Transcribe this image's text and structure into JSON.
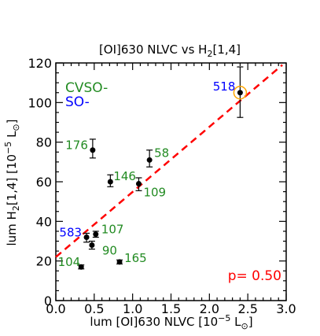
{
  "chart_data": {
    "type": "scatter",
    "title": "[OI]630 NLVC vs H₂[1,4]",
    "title_main": "[OI]630 NLVC vs H",
    "title_sub": "2",
    "title_tail": "[1,4]",
    "xlabel_main": "lum [OI]630 NLVC [10",
    "xlabel_sup": "−5",
    "xlabel_unit": " L",
    "xlabel_sub": "⊙",
    "xlabel_close": "]",
    "ylabel_main": "lum H",
    "ylabel_sub1": "2",
    "ylabel_mid": "[1,4] [10",
    "ylabel_sup": "−5",
    "ylabel_unit": " L",
    "ylabel_sub2": "⊙",
    "ylabel_close": "]",
    "xlim": [
      0.0,
      3.0
    ],
    "ylim": [
      0,
      120
    ],
    "xticks": [
      "0.0",
      "0.5",
      "1.0",
      "1.5",
      "2.0",
      "2.5",
      "3.0"
    ],
    "xtick_values": [
      0.0,
      0.5,
      1.0,
      1.5,
      2.0,
      2.5,
      3.0
    ],
    "yticks": [
      "0",
      "20",
      "40",
      "60",
      "80",
      "100",
      "120"
    ],
    "ytick_values": [
      0,
      20,
      40,
      60,
      80,
      100,
      120
    ],
    "legend": [
      {
        "label": "CVSO-",
        "color": "#228b22"
      },
      {
        "label": "SO-",
        "color": "#0000ff"
      }
    ],
    "points": [
      {
        "label": "518",
        "x": 2.4,
        "y": 105.0,
        "yerr_lo": 12.5,
        "yerr_hi": 13.0,
        "color": "#0000ff",
        "highlight": true
      },
      {
        "label": "176",
        "x": 0.48,
        "y": 76.0,
        "yerr_lo": 4.0,
        "yerr_hi": 5.5,
        "color": "#228b22"
      },
      {
        "label": "58",
        "x": 1.22,
        "y": 71.0,
        "yerr_lo": 3.5,
        "yerr_hi": 5.0,
        "color": "#228b22"
      },
      {
        "label": "146",
        "x": 0.71,
        "y": 60.0,
        "yerr_lo": 2.5,
        "yerr_hi": 3.5,
        "color": "#228b22"
      },
      {
        "label": "109",
        "x": 1.08,
        "y": 59.0,
        "yerr_lo": 3.5,
        "yerr_hi": 3.0,
        "color": "#228b22"
      },
      {
        "label": "583",
        "x": 0.4,
        "y": 32.0,
        "yerr_lo": 2.5,
        "yerr_hi": 2.0,
        "color": "#0000ff"
      },
      {
        "label": "107",
        "x": 0.52,
        "y": 33.5,
        "yerr_lo": 1.5,
        "yerr_hi": 1.5,
        "color": "#228b22"
      },
      {
        "label": "90",
        "x": 0.47,
        "y": 28.0,
        "yerr_lo": 2.0,
        "yerr_hi": 2.0,
        "color": "#228b22"
      },
      {
        "label": "104",
        "x": 0.33,
        "y": 17.0,
        "yerr_lo": 1.0,
        "yerr_hi": 1.0,
        "color": "#228b22"
      },
      {
        "label": "165",
        "x": 0.83,
        "y": 19.5,
        "yerr_lo": 1.0,
        "yerr_hi": 1.0,
        "color": "#228b22"
      }
    ],
    "fit_line": {
      "x": [
        0.0,
        2.95
      ],
      "y": [
        22.0,
        119.0
      ],
      "color": "#ff0000",
      "style": "dashed"
    },
    "annotation": "p= 0.50",
    "annotation_color": "#ff0000",
    "grid": false
  }
}
